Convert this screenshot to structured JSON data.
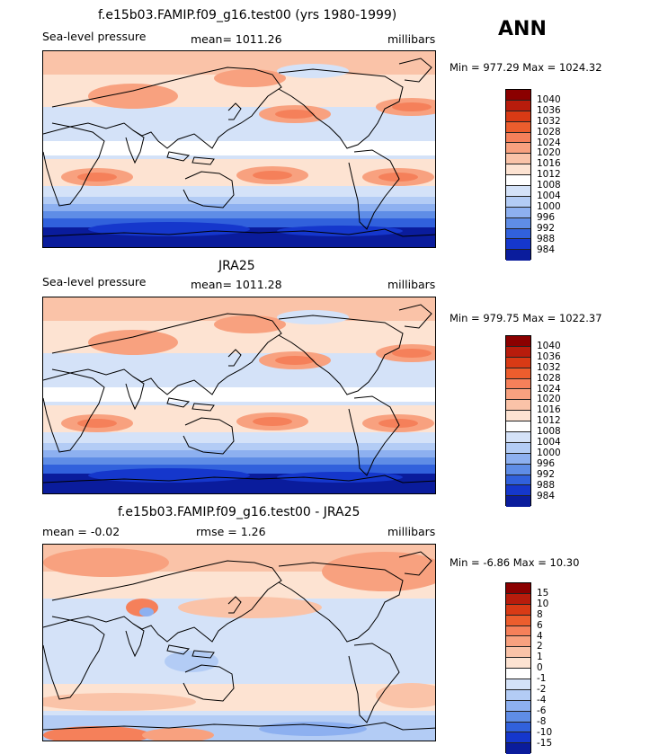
{
  "season": "ANN",
  "panels": [
    {
      "title": "f.e15b03.FAMIP.f09_g16.test00 (yrs 1980-1999)",
      "left_label": "Sea-level pressure",
      "mean_text": "mean=  1011.26",
      "units": "millibars",
      "minmax": "Min = 977.29 Max = 1024.32"
    },
    {
      "title": "JRA25",
      "left_label": "Sea-level pressure",
      "mean_text": "mean=  1011.28",
      "units": "millibars",
      "minmax": "Min = 979.75 Max = 1022.37"
    },
    {
      "title": "f.e15b03.FAMIP.f09_g16.test00 - JRA25",
      "left_label": "mean =   -0.02",
      "mean_text": "rmse =    1.26",
      "units": "millibars",
      "minmax": "Min =   -6.86 Max =  10.30"
    }
  ],
  "chart_data": [
    {
      "type": "heatmap",
      "title": "f.e15b03.FAMIP.f09_g16.test00 (yrs 1980-1999)",
      "variable": "Sea-level pressure",
      "units": "millibars",
      "mean": 1011.26,
      "min": 977.29,
      "max": 1024.32,
      "projection": "cylindrical equidistant, Pacific-centered",
      "colorbar_levels": [
        "1040",
        "1036",
        "1032",
        "1028",
        "1024",
        "1020",
        "1016",
        "1012",
        "1008",
        "1004",
        "1000",
        "996",
        "992",
        "988",
        "984"
      ],
      "colorbar_colors": [
        "#8b0000",
        "#b81c0c",
        "#d93a15",
        "#ec5d2d",
        "#f5805a",
        "#f8a17f",
        "#fac3a8",
        "#fde3d2",
        "#ffffff",
        "#d4e2f8",
        "#b3ccf5",
        "#8db0f0",
        "#5f8de6",
        "#3161dc",
        "#1537cc",
        "#0a1c9c"
      ]
    },
    {
      "type": "heatmap",
      "title": "JRA25",
      "variable": "Sea-level pressure",
      "units": "millibars",
      "mean": 1011.28,
      "min": 979.75,
      "max": 1022.37,
      "projection": "cylindrical equidistant, Pacific-centered",
      "colorbar_levels": [
        "1040",
        "1036",
        "1032",
        "1028",
        "1024",
        "1020",
        "1016",
        "1012",
        "1008",
        "1004",
        "1000",
        "996",
        "992",
        "988",
        "984"
      ],
      "colorbar_colors": [
        "#8b0000",
        "#b81c0c",
        "#d93a15",
        "#ec5d2d",
        "#f5805a",
        "#f8a17f",
        "#fac3a8",
        "#fde3d2",
        "#ffffff",
        "#d4e2f8",
        "#b3ccf5",
        "#8db0f0",
        "#5f8de6",
        "#3161dc",
        "#1537cc",
        "#0a1c9c"
      ]
    },
    {
      "type": "heatmap",
      "title": "f.e15b03.FAMIP.f09_g16.test00 - JRA25",
      "units": "millibars",
      "mean": -0.02,
      "rmse": 1.26,
      "min": -6.86,
      "max": 10.3,
      "projection": "cylindrical equidistant, Pacific-centered",
      "colorbar_levels": [
        "15",
        "10",
        "8",
        "6",
        "4",
        "2",
        "1",
        "0",
        "-1",
        "-2",
        "-4",
        "-6",
        "-8",
        "-10",
        "-15"
      ],
      "colorbar_colors": [
        "#8b0000",
        "#b81c0c",
        "#d93a15",
        "#ec5d2d",
        "#f5805a",
        "#f8a17f",
        "#fac3a8",
        "#fde3d2",
        "#ffffff",
        "#d4e2f8",
        "#b3ccf5",
        "#8db0f0",
        "#5f8de6",
        "#3161dc",
        "#1537cc",
        "#0a1c9c"
      ]
    }
  ]
}
